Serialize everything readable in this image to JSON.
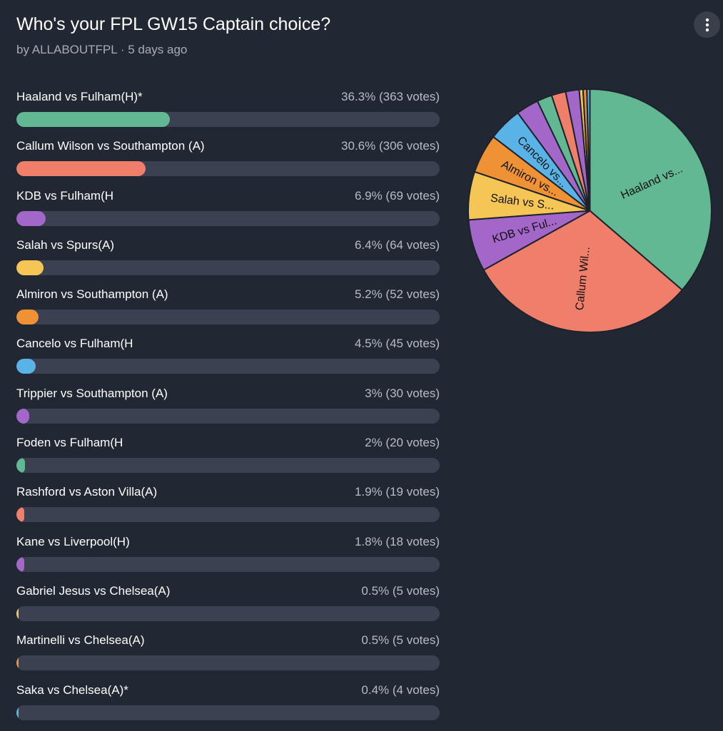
{
  "poll": {
    "title": "Who's your FPL GW15 Captain choice?",
    "byline": "by ALLABOUTFPL · 5 days ago",
    "menu_icon": "more-vertical-icon"
  },
  "options": [
    {
      "label": "Haaland vs Fulham(H)*",
      "stat": "36.3% (363 votes)",
      "percent": 36.3,
      "color": "#62b893",
      "pie_label": "Haaland vs..."
    },
    {
      "label": "Callum Wilson vs Southampton (A)",
      "stat": "30.6% (306 votes)",
      "percent": 30.6,
      "color": "#ef7f6b",
      "pie_label": "Callum Wil..."
    },
    {
      "label": "KDB vs Fulham(H",
      "stat": "6.9% (69 votes)",
      "percent": 6.9,
      "color": "#a267c9",
      "pie_label": "KDB vs Ful..."
    },
    {
      "label": "Salah vs Spurs(A)",
      "stat": "6.4% (64 votes)",
      "percent": 6.4,
      "color": "#f5c555",
      "pie_label": "Salah vs S..."
    },
    {
      "label": "Almiron vs Southampton (A)",
      "stat": "5.2% (52 votes)",
      "percent": 5.2,
      "color": "#ef9135",
      "pie_label": "Almiron vs..."
    },
    {
      "label": "Cancelo vs Fulham(H",
      "stat": "4.5% (45 votes)",
      "percent": 4.5,
      "color": "#5ab3e6",
      "pie_label": "Cancelo vs..."
    },
    {
      "label": "Trippier vs Southampton (A)",
      "stat": "3% (30 votes)",
      "percent": 3,
      "color": "#a267c9",
      "pie_label": ""
    },
    {
      "label": "Foden vs Fulham(H",
      "stat": "2% (20 votes)",
      "percent": 2,
      "color": "#62b893",
      "pie_label": ""
    },
    {
      "label": "Rashford vs Aston Villa(A)",
      "stat": "1.9% (19 votes)",
      "percent": 1.9,
      "color": "#ef7f6b",
      "pie_label": ""
    },
    {
      "label": "Kane vs Liverpool(H)",
      "stat": "1.8% (18 votes)",
      "percent": 1.8,
      "color": "#a267c9",
      "pie_label": ""
    },
    {
      "label": "Gabriel Jesus vs Chelsea(A)",
      "stat": "0.5% (5 votes)",
      "percent": 0.5,
      "color": "#f5c555",
      "pie_label": ""
    },
    {
      "label": "Martinelli vs Chelsea(A)",
      "stat": "0.5% (5 votes)",
      "percent": 0.5,
      "color": "#ef9135",
      "pie_label": ""
    },
    {
      "label": "Saka vs Chelsea(A)*",
      "stat": "0.4% (4 votes)",
      "percent": 0.4,
      "color": "#5ab3e6",
      "pie_label": ""
    }
  ],
  "chart_data": {
    "type": "pie",
    "categories": [
      "Haaland vs Fulham(H)*",
      "Callum Wilson vs Southampton (A)",
      "KDB vs Fulham(H",
      "Salah vs Spurs(A)",
      "Almiron vs Southampton (A)",
      "Cancelo vs Fulham(H",
      "Trippier vs Southampton (A)",
      "Foden vs Fulham(H",
      "Rashford vs Aston Villa(A)",
      "Kane vs Liverpool(H)",
      "Gabriel Jesus vs Chelsea(A)",
      "Martinelli vs Chelsea(A)",
      "Saka vs Chelsea(A)*"
    ],
    "values": [
      363,
      306,
      69,
      64,
      52,
      45,
      30,
      20,
      19,
      18,
      5,
      5,
      4
    ],
    "slice_labels": [
      "Haaland vs...",
      "Callum Wil...",
      "KDB vs Ful...",
      "Salah vs S...",
      "Almiron vs...",
      "Cancelo vs...",
      "",
      "",
      "",
      "",
      "",
      "",
      ""
    ],
    "colors": [
      "#62b893",
      "#ef7f6b",
      "#a267c9",
      "#f5c555",
      "#ef9135",
      "#5ab3e6",
      "#a267c9",
      "#62b893",
      "#ef7f6b",
      "#a267c9",
      "#f5c555",
      "#ef9135",
      "#5ab3e6"
    ],
    "start": "12 o'clock, clockwise"
  }
}
